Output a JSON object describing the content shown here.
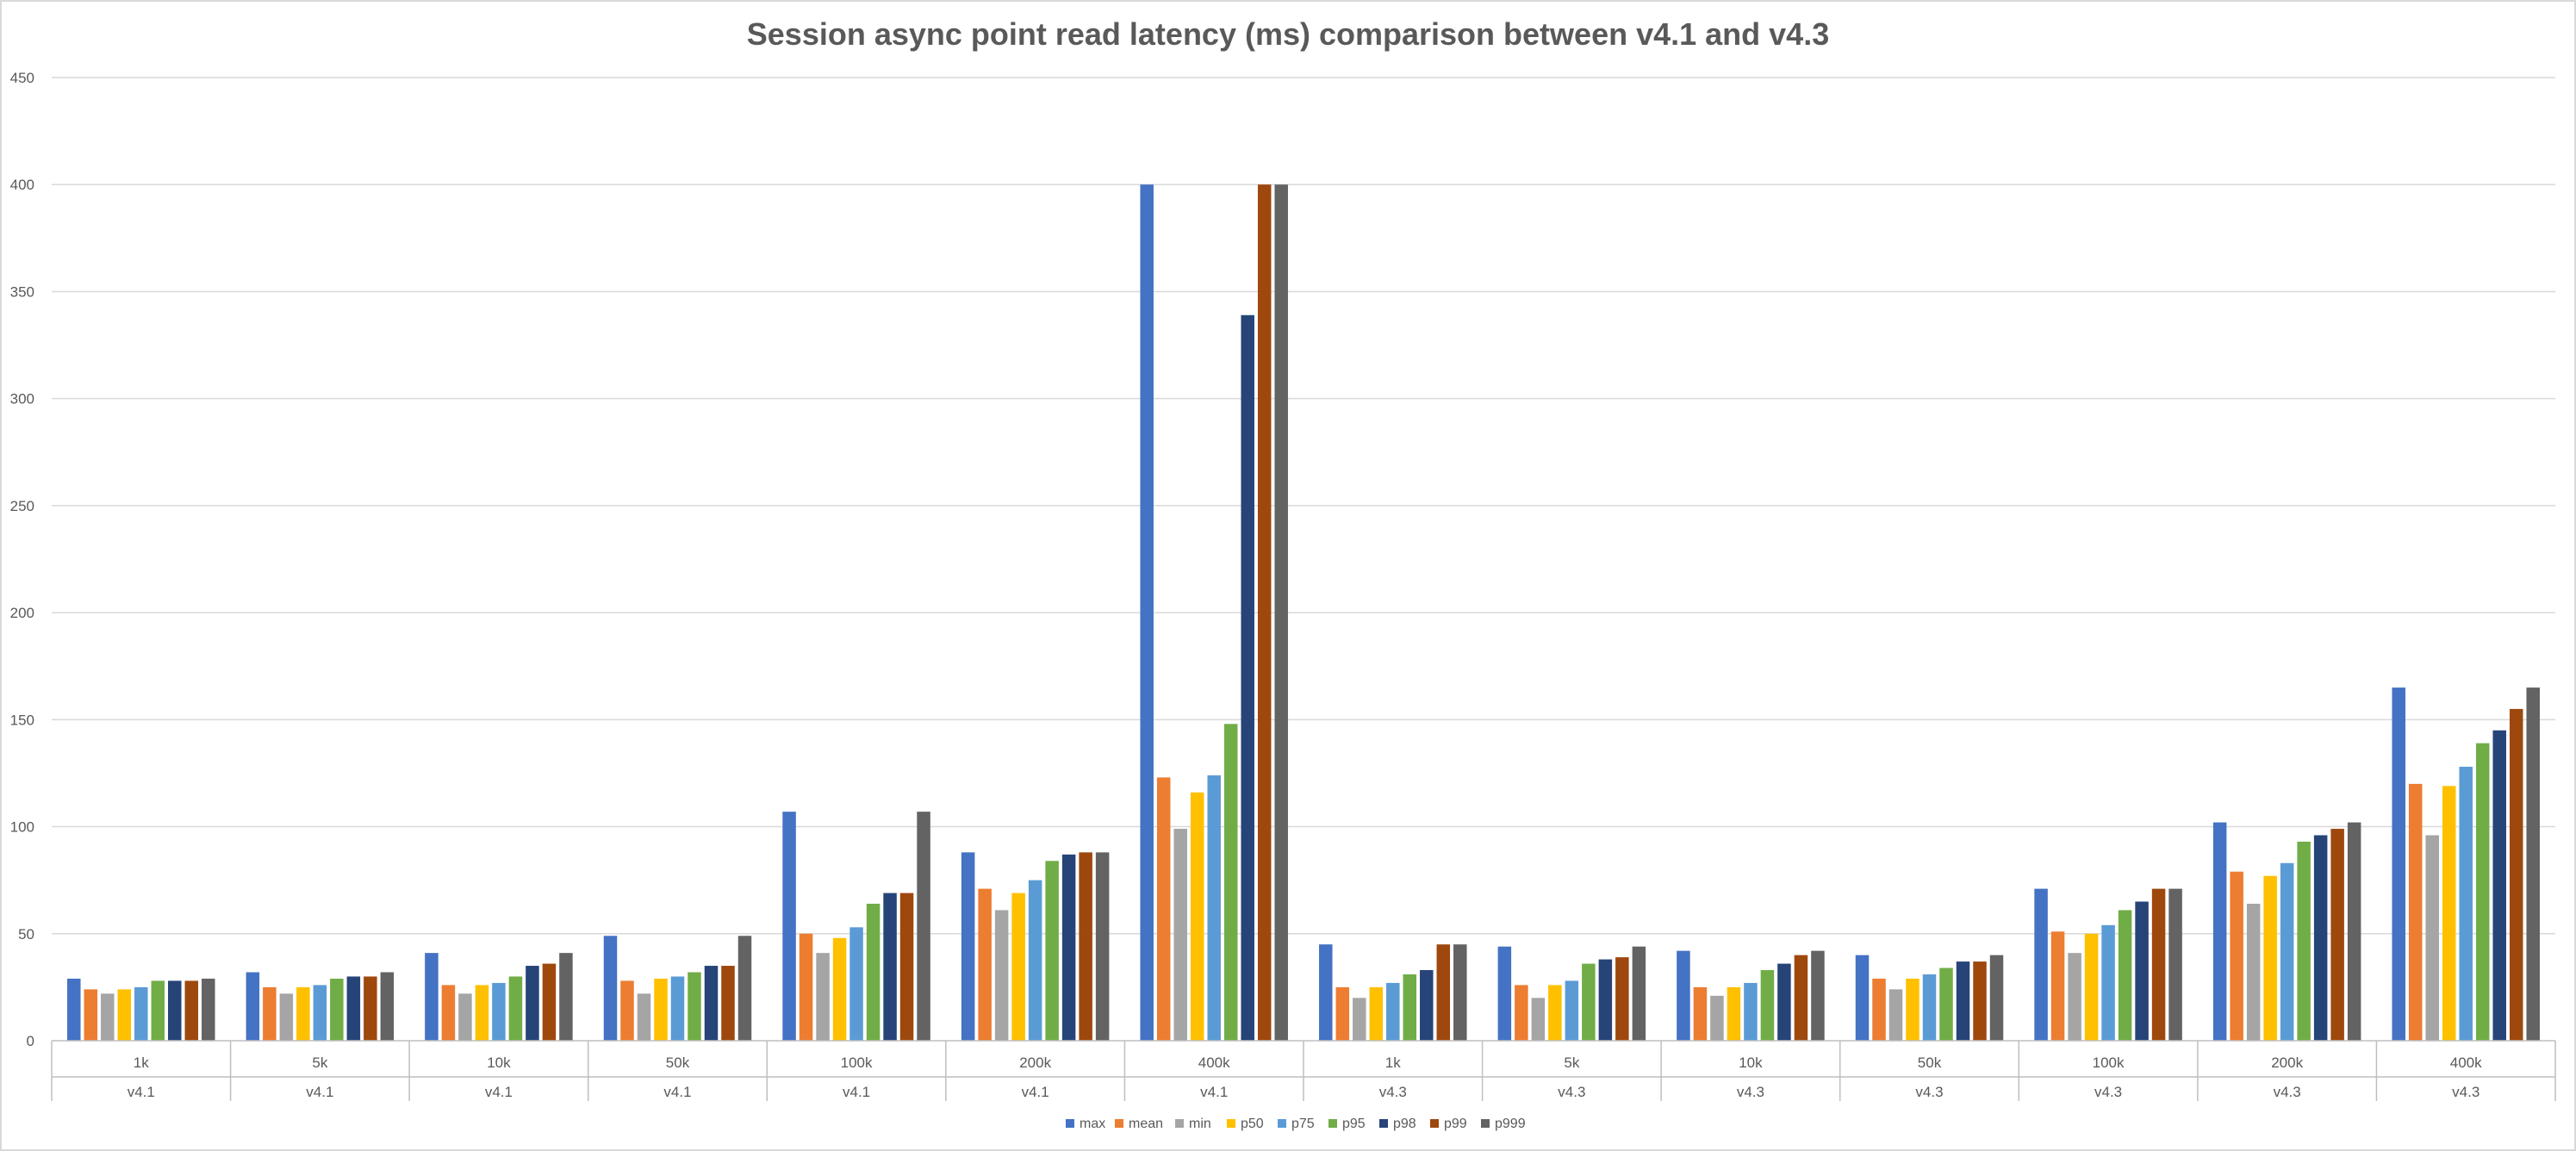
{
  "chart_data": {
    "type": "bar",
    "title": "Session async point read latency (ms) comparison between v4.1 and v4.3",
    "xlabel": "",
    "ylabel": "",
    "ylim": [
      0,
      450
    ],
    "yticks": [
      "0",
      "50",
      "100",
      "150",
      "200",
      "250",
      "300",
      "350",
      "400",
      "450"
    ],
    "grid": true,
    "legend_position": "bottom",
    "categories": [
      "1k",
      "5k",
      "10k",
      "50k",
      "100k",
      "200k",
      "400k",
      "1k",
      "5k",
      "10k",
      "50k",
      "100k",
      "200k",
      "400k"
    ],
    "groups": [
      "v4.1",
      "v4.1",
      "v4.1",
      "v4.1",
      "v4.1",
      "v4.1",
      "v4.1",
      "v4.3",
      "v4.3",
      "v4.3",
      "v4.3",
      "v4.3",
      "v4.3",
      "v4.3"
    ],
    "series": [
      {
        "name": "max",
        "color": "#4472c4",
        "values": [
          29,
          32,
          41,
          49,
          107,
          88,
          400,
          45,
          44,
          42,
          40,
          71,
          102,
          165
        ]
      },
      {
        "name": "mean",
        "color": "#ed7d31",
        "values": [
          24,
          25,
          26,
          28,
          50,
          71,
          123,
          25,
          26,
          25,
          29,
          51,
          79,
          120
        ]
      },
      {
        "name": "min",
        "color": "#a5a5a5",
        "values": [
          22,
          22,
          22,
          22,
          41,
          61,
          99,
          20,
          20,
          21,
          24,
          41,
          64,
          96
        ]
      },
      {
        "name": "p50",
        "color": "#ffc000",
        "values": [
          24,
          25,
          26,
          29,
          48,
          69,
          116,
          25,
          26,
          25,
          29,
          50,
          77,
          119
        ]
      },
      {
        "name": "p75",
        "color": "#5b9bd5",
        "values": [
          25,
          26,
          27,
          30,
          53,
          75,
          124,
          27,
          28,
          27,
          31,
          54,
          83,
          128
        ]
      },
      {
        "name": "p95",
        "color": "#70ad47",
        "values": [
          28,
          29,
          30,
          32,
          64,
          84,
          148,
          31,
          36,
          33,
          34,
          61,
          93,
          139
        ]
      },
      {
        "name": "p98",
        "color": "#264478",
        "values": [
          28,
          30,
          35,
          35,
          69,
          87,
          339,
          33,
          38,
          36,
          37,
          65,
          96,
          145
        ]
      },
      {
        "name": "p99",
        "color": "#9e480e",
        "values": [
          28,
          30,
          36,
          35,
          69,
          88,
          400,
          45,
          39,
          40,
          37,
          71,
          99,
          155
        ]
      },
      {
        "name": "p999",
        "color": "#636363",
        "values": [
          29,
          32,
          41,
          49,
          107,
          88,
          400,
          45,
          44,
          42,
          40,
          71,
          102,
          165
        ]
      }
    ]
  }
}
